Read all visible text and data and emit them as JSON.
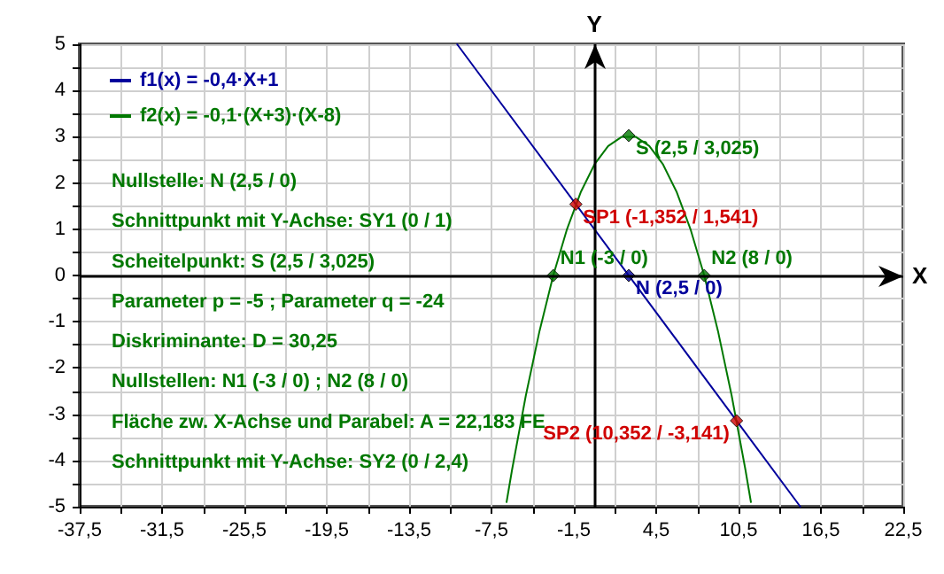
{
  "chart_data": {
    "type": "line",
    "ref_lines": [
      {
        "axis": "y",
        "value": 0,
        "label": "X",
        "color": "#000000"
      },
      {
        "axis": "x",
        "value": 0,
        "label": "Y",
        "color": "#000000"
      }
    ],
    "xlim": [
      -37.5,
      22.5
    ],
    "ylim": [
      -5,
      5
    ],
    "xticks": [
      {
        "value": -37.5,
        "label": "-37,5"
      },
      {
        "value": -34.5,
        "label": null
      },
      {
        "value": -31.5,
        "label": "-31,5"
      },
      {
        "value": -28.5,
        "label": null
      },
      {
        "value": -25.5,
        "label": "-25,5"
      },
      {
        "value": -22.5,
        "label": null
      },
      {
        "value": -19.5,
        "label": "-19,5"
      },
      {
        "value": -16.5,
        "label": null
      },
      {
        "value": -13.5,
        "label": "-13,5"
      },
      {
        "value": -10.5,
        "label": null
      },
      {
        "value": -7.5,
        "label": "-7,5"
      },
      {
        "value": -4.5,
        "label": null
      },
      {
        "value": -1.5,
        "label": "-1,5"
      },
      {
        "value": 1.5,
        "label": null
      },
      {
        "value": 4.5,
        "label": "4,5"
      },
      {
        "value": 7.5,
        "label": null
      },
      {
        "value": 10.5,
        "label": "10,5"
      },
      {
        "value": 13.5,
        "label": null
      },
      {
        "value": 16.5,
        "label": "16,5"
      },
      {
        "value": 19.5,
        "label": null
      },
      {
        "value": 22.5,
        "label": "22,5"
      }
    ],
    "yticks": [
      -5,
      {
        "value": -4.5,
        "label": null
      },
      -4,
      {
        "value": -3.5,
        "label": null
      },
      -3,
      {
        "value": -2.5,
        "label": null
      },
      -2,
      {
        "value": -1.5,
        "label": null
      },
      -1,
      {
        "value": -0.5,
        "label": null
      },
      0,
      {
        "value": 0.5,
        "label": null
      },
      1,
      {
        "value": 1.5,
        "label": null
      },
      2,
      {
        "value": 2.5,
        "label": null
      },
      3,
      {
        "value": 3.5,
        "label": null
      },
      4,
      {
        "value": 4.5,
        "label": null
      },
      5
    ],
    "grid": true,
    "legend": "top left",
    "marker": "none",
    "line_style": "solid",
    "series": [
      {
        "name": "f1(x) = -0,4·X+1",
        "color": "#00009c",
        "x": [
          -10,
          15
        ],
        "values": [
          5,
          -5
        ]
      },
      {
        "name": "f2(x) = -0,1·(X+3)·(X-8)",
        "color": "#007800",
        "x": [
          -6.4,
          -6,
          -5.5,
          -5,
          -4,
          -3,
          -2,
          -1,
          0,
          1,
          2,
          2.5,
          3,
          4,
          5,
          6,
          7,
          8,
          9,
          10,
          10.5,
          11,
          11.4
        ],
        "values": [
          -4.9,
          -4.2,
          -3.4,
          -2.6,
          -1.2,
          0,
          1,
          1.8,
          2.4,
          2.8,
          3,
          3,
          3,
          2.8,
          2.4,
          1.8,
          1,
          0,
          -1.2,
          -2.6,
          -3.4,
          -4.2,
          -4.9
        ]
      },
      {
        "type": "scatter",
        "marker": "diamond",
        "colors": [
          "#007800",
          "#d00000",
          "#d00000",
          "#00009c",
          "#007800",
          "#007800"
        ],
        "x": [
          2.5,
          -1.352,
          10.352,
          2.5,
          -3,
          8
        ],
        "values": [
          3.025,
          1.541,
          -3.141,
          0,
          0,
          0
        ]
      }
    ],
    "annotations": [
      "Nullstelle: N (2,5 / 0)",
      "Schnittpunkt mit Y-Achse: SY1 (0 / 1)",
      "Scheitelpunkt: S (2,5 / 3,025)",
      "Parameter p = -5 ; Parameter q = -24",
      "Diskriminante: D = 30,25",
      "Nullstellen: N1 (-3 / 0) ; N2 (8 / 0)",
      "Fläche zw. X-Achse und Parabel: A = 22,183 FE",
      "Schnittpunkt mit Y-Achse: SY2 (0 / 2,4)",
      {
        "text": "S (2,5 / 3,025)",
        "x": 2.5,
        "y": 3.025
      },
      {
        "text": "SP1 (-1,352 / 1,541)",
        "x": -1.352,
        "y": 1.541
      },
      {
        "text": "SP2 (10,352 / -3,141)",
        "x": 10.352,
        "y": -3.141
      },
      {
        "text": "N (2,5 / 0)",
        "x": 2.5,
        "y": 0
      },
      {
        "text": "N1 (-3 / 0)",
        "x": -3,
        "y": 0
      },
      {
        "text": "N2 (8 / 0)",
        "x": 8,
        "y": 0
      }
    ]
  }
}
